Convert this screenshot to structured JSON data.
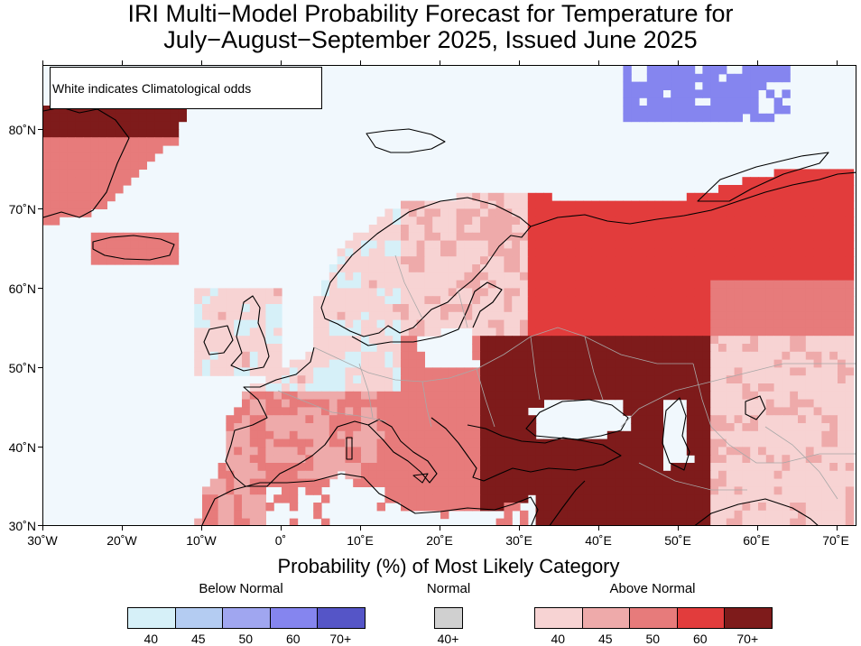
{
  "title": {
    "line1": "IRI Multi−Model Probability Forecast for Temperature for",
    "line2": "July−August−September 2025, Issued June 2025"
  },
  "map": {
    "note": "White indicates Climatological odds",
    "lat_labels": [
      "80˚N",
      "70˚N",
      "60˚N",
      "50˚N",
      "40˚N",
      "30˚N"
    ],
    "lon_labels": [
      "30˚W",
      "20˚W",
      "10˚W",
      "0˚",
      "10˚E",
      "20˚E",
      "30˚E",
      "40˚E",
      "50˚E",
      "60˚E",
      "70˚E"
    ],
    "colors": {
      "ocean": "#f1f8fd",
      "above_40": "#f7d3d3",
      "above_45": "#eeaaaa",
      "above_50": "#e77b7b",
      "above_60": "#e23c3c",
      "above_70": "#7e1b1b",
      "below_40": "#d6f0f8",
      "below_45": "#b4ccf2",
      "below_50": "#a0a6f0",
      "below_60": "#8585ef",
      "below_70": "#5555c7",
      "normal": "#d0d0d0"
    }
  },
  "legend": {
    "title": "Probability (%) of Most Likely Category",
    "below": {
      "label": "Below Normal",
      "ticks": [
        "40",
        "45",
        "50",
        "60",
        "70+"
      ],
      "colors": [
        "#d6f0f8",
        "#b4ccf2",
        "#a0a6f0",
        "#8585ef",
        "#5555c7"
      ]
    },
    "normal": {
      "label": "Normal",
      "ticks": [
        "40+"
      ],
      "colors": [
        "#d0d0d0"
      ]
    },
    "above": {
      "label": "Above Normal",
      "ticks": [
        "40",
        "45",
        "50",
        "60",
        "70+"
      ],
      "colors": [
        "#f7d3d3",
        "#eeaaaa",
        "#e77b7b",
        "#e23c3c",
        "#7e1b1b"
      ]
    }
  }
}
